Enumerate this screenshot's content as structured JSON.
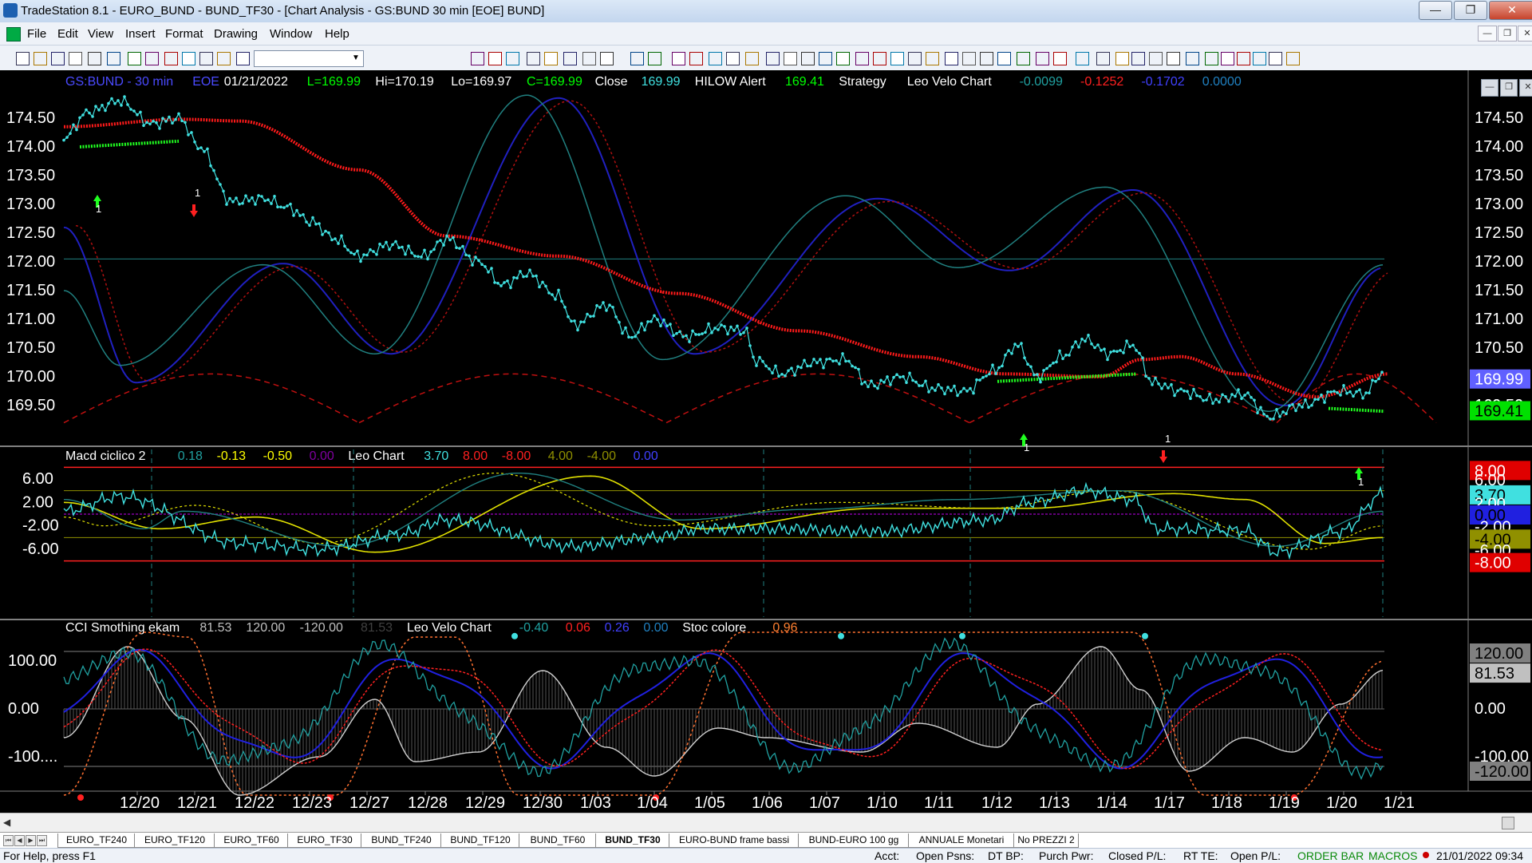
{
  "window": {
    "title": "TradeStation 8.1 - EURO_BUND - BUND_TF30 - [Chart Analysis - GS:BUND  30 min  [EOE] BUND]"
  },
  "menu": [
    "File",
    "Edit",
    "View",
    "Insert",
    "Format",
    "Drawing",
    "Window",
    "Help"
  ],
  "toolbar": {
    "symbol_value": ""
  },
  "price_pane": {
    "legend": [
      {
        "text": "GS:BUND - 30 min",
        "color": "#4a4aff"
      },
      {
        "text": "EOE",
        "color": "#4a4aff"
      },
      {
        "text": "01/21/2022",
        "color": "#ffffff"
      },
      {
        "text": "L=169.99",
        "color": "#00ff00"
      },
      {
        "text": "Hi=170.19",
        "color": "#ffffff"
      },
      {
        "text": "Lo=169.97",
        "color": "#ffffff"
      },
      {
        "text": "C=169.99",
        "color": "#00ff00"
      },
      {
        "text": "Close",
        "color": "#ffffff"
      },
      {
        "text": "169.99",
        "color": "#40e0e0"
      },
      {
        "text": "HILOW Alert",
        "color": "#ffffff"
      },
      {
        "text": "169.41",
        "color": "#00ff00"
      },
      {
        "text": "Strategy",
        "color": "#ffffff"
      },
      {
        "text": "Leo Velo Chart",
        "color": "#ffffff"
      },
      {
        "text": "-0.0099",
        "color": "#20a0a0"
      },
      {
        "text": "-0.1252",
        "color": "#ff2020"
      },
      {
        "text": "-0.1702",
        "color": "#4040ff"
      },
      {
        "text": "0.0000",
        "color": "#2080c0"
      }
    ],
    "y_ticks": [
      "174.50",
      "174.00",
      "173.50",
      "173.00",
      "172.50",
      "172.00",
      "171.50",
      "171.00",
      "170.50",
      "170.00",
      "169.50"
    ],
    "price_tag": "169.99",
    "alert_tag": "169.41",
    "hidden_tag": "169.50",
    "markers": [
      "1",
      "1",
      "1",
      "1",
      "1"
    ]
  },
  "macd_pane": {
    "legend": [
      {
        "text": "Macd ciclico 2",
        "color": "#ffffff"
      },
      {
        "text": "0.18",
        "color": "#20a0a0"
      },
      {
        "text": "-0.13",
        "color": "#ffff00"
      },
      {
        "text": "-0.50",
        "color": "#ffff00"
      },
      {
        "text": "0.00",
        "color": "#8000a0"
      },
      {
        "text": "Leo Chart",
        "color": "#ffffff"
      },
      {
        "text": "3.70",
        "color": "#40e0e0"
      },
      {
        "text": "8.00",
        "color": "#ff2020"
      },
      {
        "text": "-8.00",
        "color": "#ff2020"
      },
      {
        "text": "4.00",
        "color": "#909000"
      },
      {
        "text": "-4.00",
        "color": "#909000"
      },
      {
        "text": "0.00",
        "color": "#4040ff"
      }
    ],
    "y_ticks": [
      "6.00",
      "2.00",
      "-2.00",
      "-6.00"
    ],
    "tags": [
      "8.00",
      "6.00",
      "3.70",
      "2.00",
      "0.00",
      "-2.00",
      "-4.00",
      "-6.00",
      "-8.00"
    ]
  },
  "cci_pane": {
    "legend": [
      {
        "text": "CCI Smothing ekam",
        "color": "#ffffff"
      },
      {
        "text": "81.53",
        "color": "#c0c0c0"
      },
      {
        "text": "120.00",
        "color": "#c0c0c0"
      },
      {
        "text": "-120.00",
        "color": "#c0c0c0"
      },
      {
        "text": "81.53",
        "color": "#404040"
      },
      {
        "text": "Leo Velo Chart",
        "color": "#ffffff"
      },
      {
        "text": "-0.40",
        "color": "#20a0a0"
      },
      {
        "text": "0.06",
        "color": "#ff2020"
      },
      {
        "text": "0.26",
        "color": "#4040ff"
      },
      {
        "text": "0.00",
        "color": "#2080c0"
      },
      {
        "text": "Stoc colore",
        "color": "#ffffff"
      },
      {
        "text": "0.96",
        "color": "#ff8030"
      }
    ],
    "y_ticks": [
      "100.00",
      "0.00",
      "-100...."
    ],
    "tags": [
      "120.00",
      "81.53",
      "0.00",
      "-100.00",
      "-120.00"
    ]
  },
  "x_axis": [
    "12/20",
    "12/21",
    "12/22",
    "12/23",
    "12/27",
    "12/28",
    "12/29",
    "12/30",
    "1/03",
    "1/04",
    "1/05",
    "1/06",
    "1/07",
    "1/10",
    "1/11",
    "1/12",
    "1/13",
    "1/14",
    "1/17",
    "1/18",
    "1/19",
    "1/20",
    "1/21"
  ],
  "tabs": [
    "EURO_TF240",
    "EURO_TF120",
    "EURO_TF60",
    "EURO_TF30",
    "BUND_TF240",
    "BUND_TF120",
    "BUND_TF60",
    "BUND_TF30",
    "EURO-BUND frame bassi",
    "BUND-EURO 100 gg",
    "ANNUALE Monetari",
    "No PREZZI 2"
  ],
  "active_tab": "BUND_TF30",
  "status": {
    "help": "For Help, press F1",
    "acct": "Acct:",
    "open_psns": "Open Psns:",
    "dt_bp": "DT BP:",
    "purch_pwr": "Purch Pwr:",
    "closed_pl": "Closed P/L:",
    "rt_te": "RT TE:",
    "open_pl": "Open P/L:",
    "order_bar": "ORDER BAR",
    "macros": "MACROS",
    "datetime": "21/01/2022 09:34"
  },
  "colors": {
    "cyan": "#40e0e0",
    "red": "#ff1a1a",
    "green": "#20ff20",
    "blue": "#2020c0",
    "teal": "#208080",
    "yellow": "#e0e000",
    "darkred": "#b01010"
  }
}
